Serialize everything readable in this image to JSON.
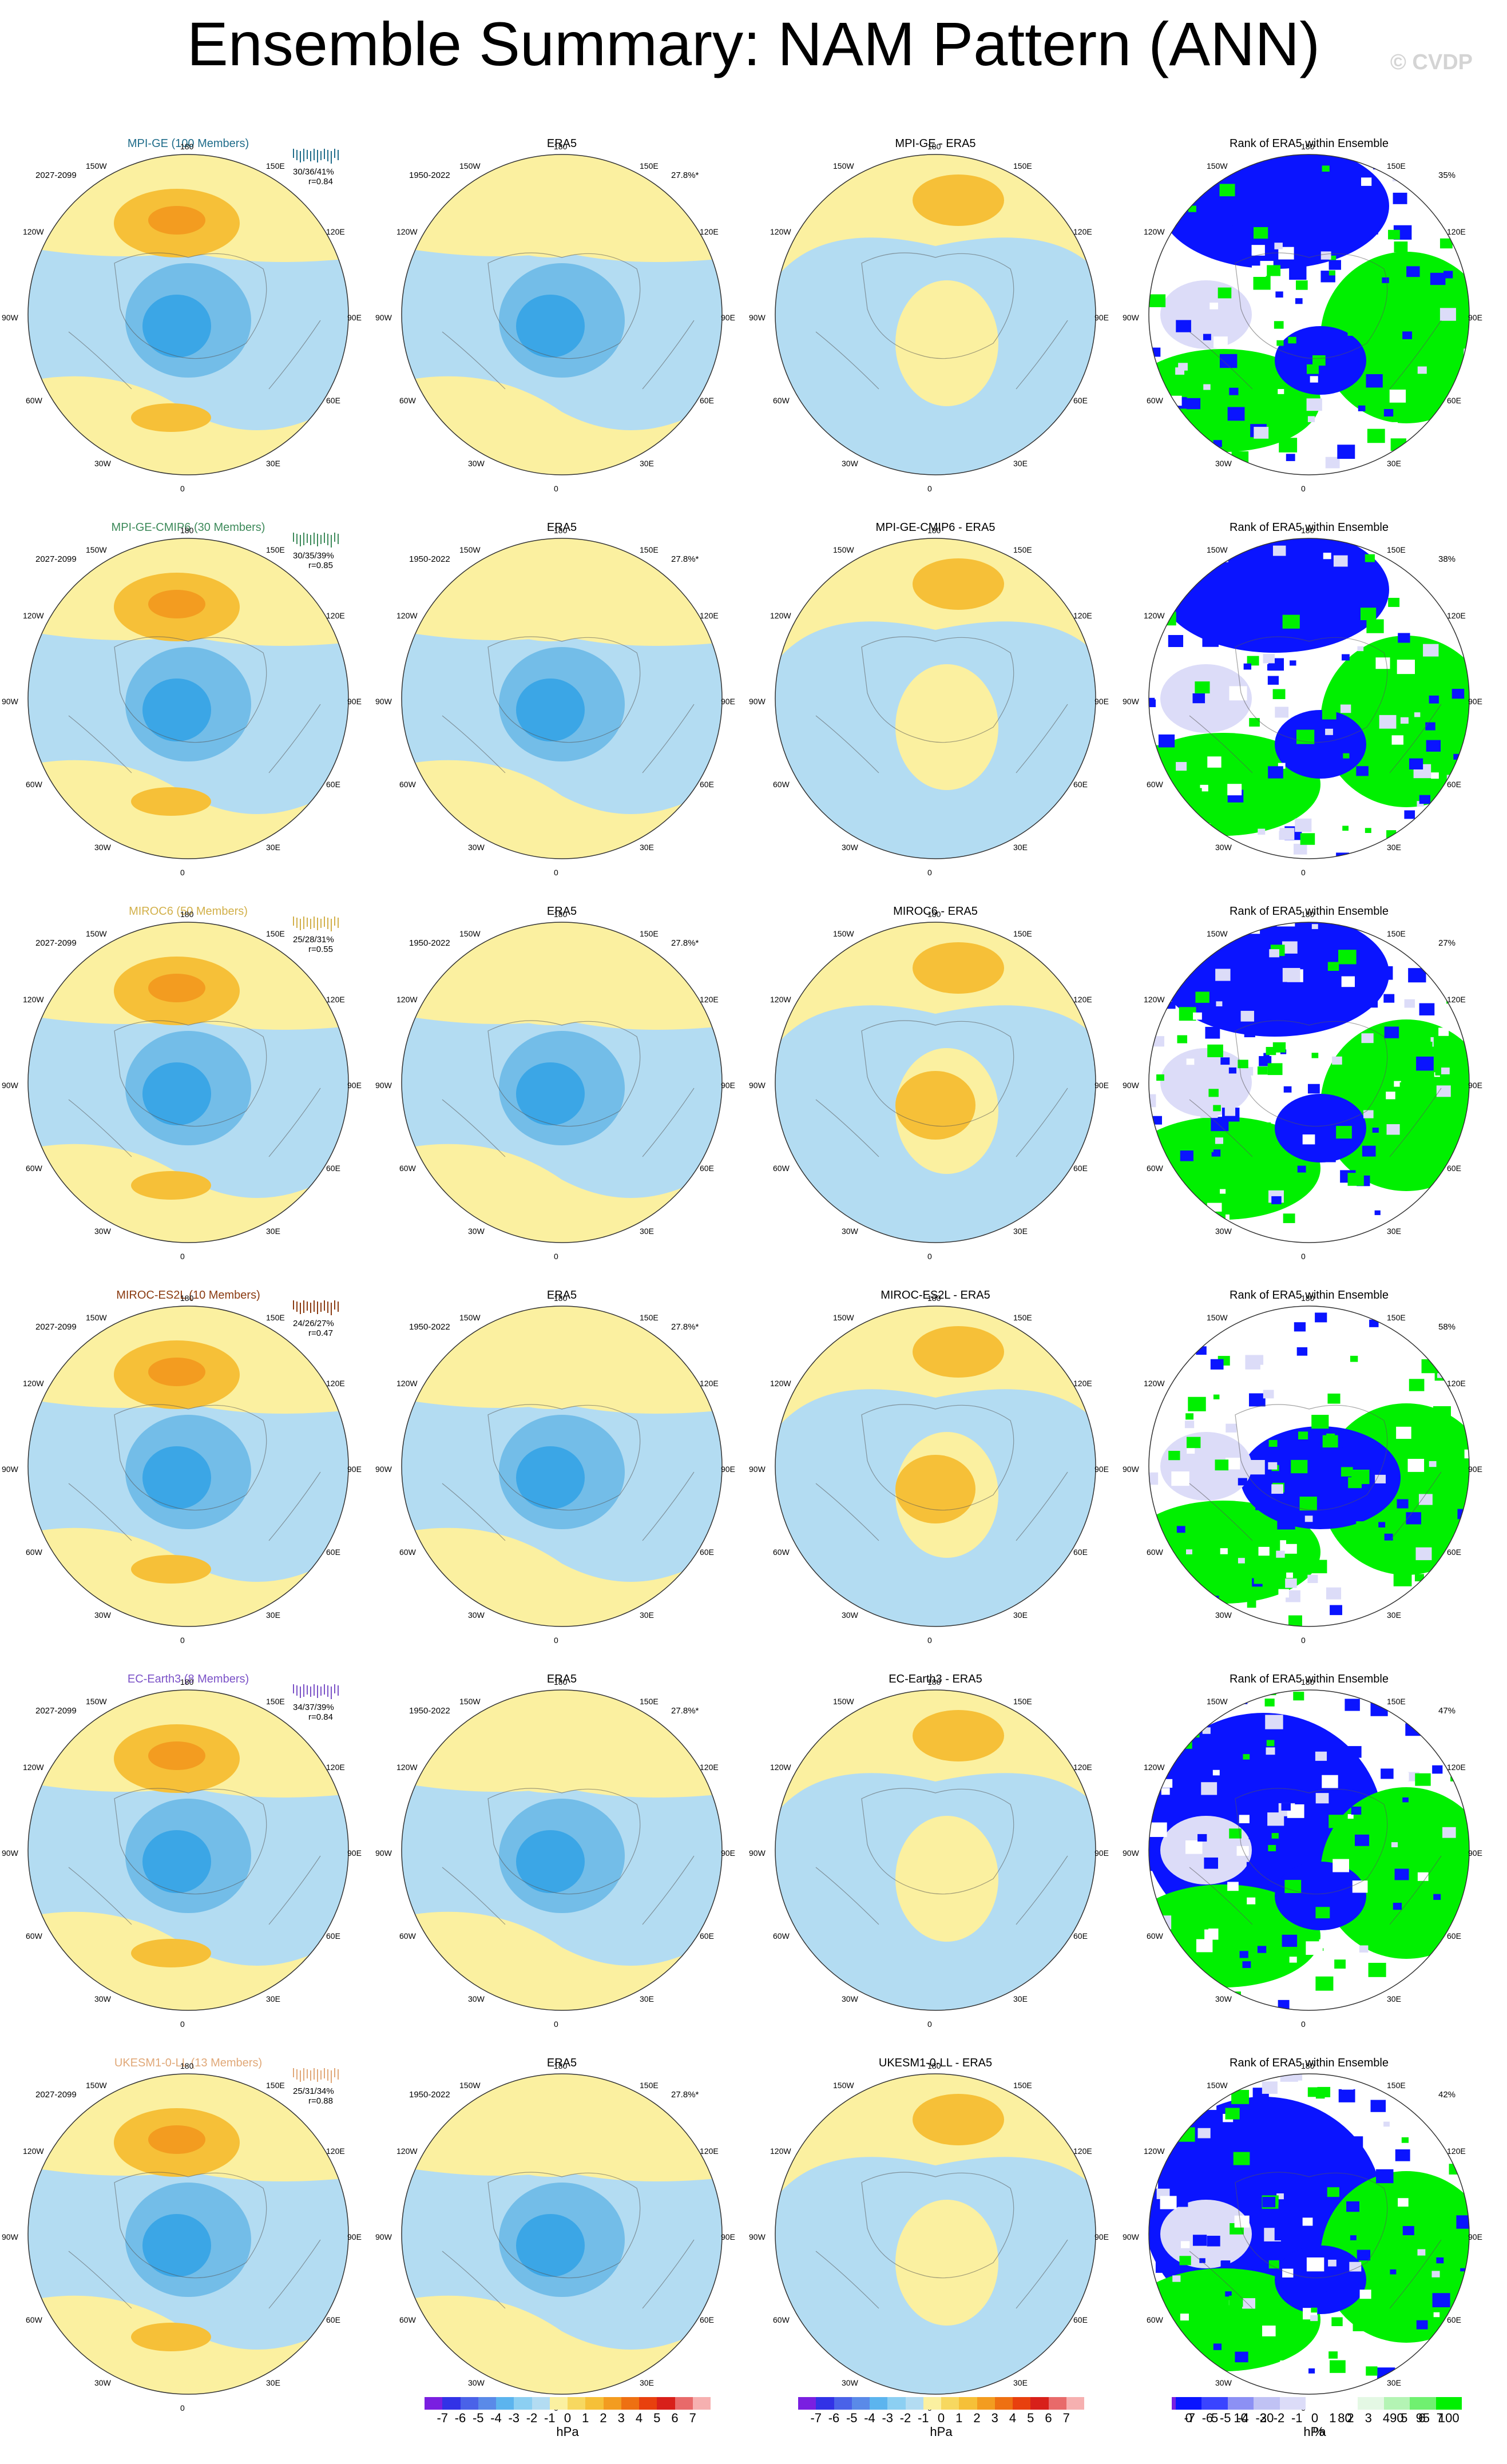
{
  "title": "Ensemble Summary: NAM Pattern (ANN)",
  "copyright": "© CVDP",
  "lon_labels": [
    "180",
    "150E",
    "120E",
    "90E",
    "60E",
    "30E",
    "0",
    "30W",
    "60W",
    "90W",
    "120W",
    "150W"
  ],
  "colors": {
    "pos1": "#fbf0a0",
    "pos2": "#f6c038",
    "pos3": "#f39c20",
    "neg1": "#b3dcf2",
    "neg2": "#73bde8",
    "neg3": "#3ba6e6",
    "rank_low": "#0a14ff",
    "rank_mid": "#dcdcf8",
    "rank_high": "#00f000"
  },
  "rows": [
    {
      "model": {
        "title": "MPI-GE (100 Members)",
        "color": "#1f6c8a",
        "period": "2027-2099",
        "stats": "30/36/41%",
        "r": "r=0.84"
      },
      "obs": {
        "title": "ERA5",
        "period": "1950-2022",
        "pct": "27.8%*"
      },
      "diff": {
        "title": "MPI-GE - ERA5"
      },
      "rank": {
        "title": "Rank of ERA5 within Ensemble",
        "pct": "35%"
      }
    },
    {
      "model": {
        "title": "MPI-GE-CMIP6 (30 Members)",
        "color": "#3d8a5a",
        "period": "2027-2099",
        "stats": "30/35/39%",
        "r": "r=0.85"
      },
      "obs": {
        "title": "ERA5",
        "period": "1950-2022",
        "pct": "27.8%*"
      },
      "diff": {
        "title": "MPI-GE-CMIP6 - ERA5"
      },
      "rank": {
        "title": "Rank of ERA5 within Ensemble",
        "pct": "38%"
      }
    },
    {
      "model": {
        "title": "MIROC6 (50 Members)",
        "color": "#d2b04a",
        "period": "2027-2099",
        "stats": "25/28/31%",
        "r": "r=0.55"
      },
      "obs": {
        "title": "ERA5",
        "period": "1950-2022",
        "pct": "27.8%*"
      },
      "diff": {
        "title": "MIROC6 - ERA5"
      },
      "rank": {
        "title": "Rank of ERA5 within Ensemble",
        "pct": "27%"
      }
    },
    {
      "model": {
        "title": "MIROC-ES2L (10 Members)",
        "color": "#8a3a10",
        "period": "2027-2099",
        "stats": "24/26/27%",
        "r": "r=0.47"
      },
      "obs": {
        "title": "ERA5",
        "period": "1950-2022",
        "pct": "27.8%*"
      },
      "diff": {
        "title": "MIROC-ES2L - ERA5"
      },
      "rank": {
        "title": "Rank of ERA5 within Ensemble",
        "pct": "58%"
      }
    },
    {
      "model": {
        "title": "EC-Earth3 (8 Members)",
        "color": "#7b52c7",
        "period": "2027-2099",
        "stats": "34/37/39%",
        "r": "r=0.84"
      },
      "obs": {
        "title": "ERA5",
        "period": "1950-2022",
        "pct": "27.8%*"
      },
      "diff": {
        "title": "EC-Earth3 - ERA5"
      },
      "rank": {
        "title": "Rank of ERA5 within Ensemble",
        "pct": "47%"
      }
    },
    {
      "model": {
        "title": "UKESM1-0-LL (13 Members)",
        "color": "#e0a878",
        "period": "2027-2099",
        "stats": "25/31/34%",
        "r": "r=0.88"
      },
      "obs": {
        "title": "ERA5",
        "period": "1950-2022",
        "pct": "27.8%*"
      },
      "diff": {
        "title": "UKESM1-0-LL - ERA5"
      },
      "rank": {
        "title": "Rank of ERA5 within Ensemble",
        "pct": "42%"
      }
    }
  ],
  "colorbar_hpa": {
    "colors": [
      "#7a1fe0",
      "#3232e6",
      "#4a62e8",
      "#5a8ae8",
      "#5cb4ee",
      "#8ccff2",
      "#b3dcf2",
      "#fbf0a0",
      "#f7d860",
      "#f6c038",
      "#f39c20",
      "#ee7012",
      "#e8400e",
      "#d8201a",
      "#e86a6a",
      "#f6b0b0"
    ],
    "labels": [
      "-7",
      "-6",
      "-5",
      "-4",
      "-3",
      "-2",
      "-1",
      "0",
      "1",
      "2",
      "3",
      "4",
      "5",
      "6",
      "7"
    ],
    "unit": "hPa"
  },
  "colorbar_rank": {
    "colors": [
      "#0a14ff",
      "#3a44ff",
      "#8c90f4",
      "#c0c2f4",
      "#dcdcf8",
      "#ffffff",
      "#ffffff",
      "#e4f8e4",
      "#b4f4b4",
      "#70f070",
      "#00f000"
    ],
    "labels": [
      "0",
      "5",
      "10",
      "20",
      "80",
      "90",
      "95",
      "100"
    ],
    "unit": "%"
  }
}
